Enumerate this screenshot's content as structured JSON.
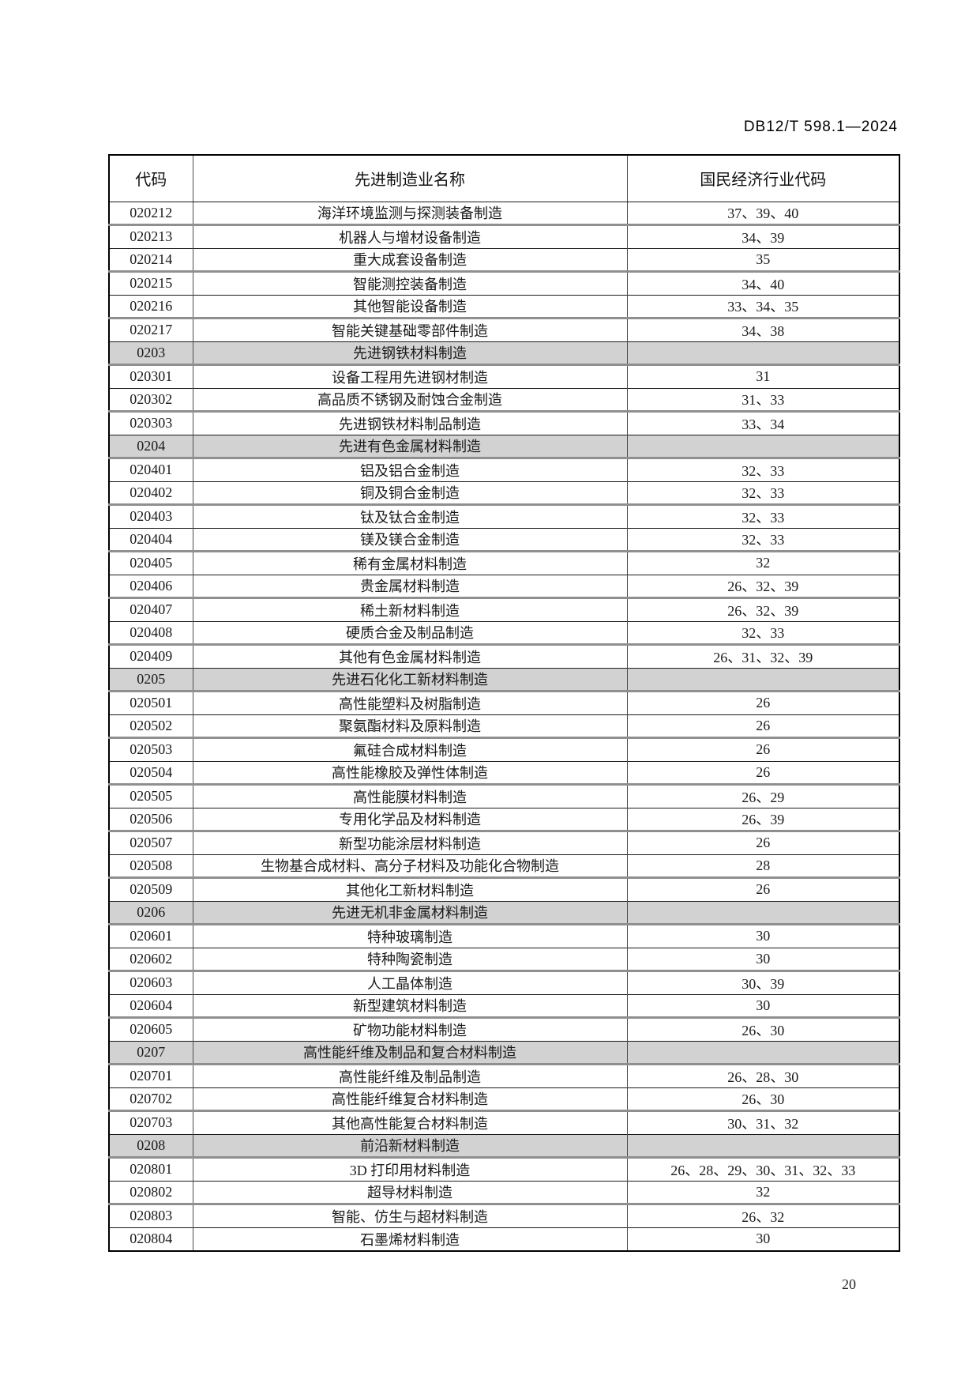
{
  "page": {
    "doc_number": "DB12/T 598.1—2024",
    "page_number": "20"
  },
  "table": {
    "headers": [
      "代码",
      "先进制造业名称",
      "国民经济行业代码"
    ],
    "rows": [
      {
        "code": "020212",
        "name": "海洋环境监测与探测装备制造",
        "codes": "37、39、40",
        "section": false
      },
      {
        "code": "020213",
        "name": "机器人与增材设备制造",
        "codes": "34、39",
        "section": false
      },
      {
        "code": "020214",
        "name": "重大成套设备制造",
        "codes": "35",
        "section": false
      },
      {
        "code": "020215",
        "name": "智能测控装备制造",
        "codes": "34、40",
        "section": false
      },
      {
        "code": "020216",
        "name": "其他智能设备制造",
        "codes": "33、34、35",
        "section": false
      },
      {
        "code": "020217",
        "name": "智能关键基础零部件制造",
        "codes": "34、38",
        "section": false
      },
      {
        "code": "0203",
        "name": "先进钢铁材料制造",
        "codes": "",
        "section": true
      },
      {
        "code": "020301",
        "name": "设备工程用先进钢材制造",
        "codes": "31",
        "section": false
      },
      {
        "code": "020302",
        "name": "高品质不锈钢及耐蚀合金制造",
        "codes": "31、33",
        "section": false
      },
      {
        "code": "020303",
        "name": "先进钢铁材料制品制造",
        "codes": "33、34",
        "section": false
      },
      {
        "code": "0204",
        "name": "先进有色金属材料制造",
        "codes": "",
        "section": true
      },
      {
        "code": "020401",
        "name": "铝及铝合金制造",
        "codes": "32、33",
        "section": false
      },
      {
        "code": "020402",
        "name": "铜及铜合金制造",
        "codes": "32、33",
        "section": false
      },
      {
        "code": "020403",
        "name": "钛及钛合金制造",
        "codes": "32、33",
        "section": false
      },
      {
        "code": "020404",
        "name": "镁及镁合金制造",
        "codes": "32、33",
        "section": false
      },
      {
        "code": "020405",
        "name": "稀有金属材料制造",
        "codes": "32",
        "section": false
      },
      {
        "code": "020406",
        "name": "贵金属材料制造",
        "codes": "26、32、39",
        "section": false
      },
      {
        "code": "020407",
        "name": "稀土新材料制造",
        "codes": "26、32、39",
        "section": false
      },
      {
        "code": "020408",
        "name": "硬质合金及制品制造",
        "codes": "32、33",
        "section": false
      },
      {
        "code": "020409",
        "name": "其他有色金属材料制造",
        "codes": "26、31、32、39",
        "section": false
      },
      {
        "code": "0205",
        "name": "先进石化化工新材料制造",
        "codes": "",
        "section": true
      },
      {
        "code": "020501",
        "name": "高性能塑料及树脂制造",
        "codes": "26",
        "section": false
      },
      {
        "code": "020502",
        "name": "聚氨酯材料及原料制造",
        "codes": "26",
        "section": false
      },
      {
        "code": "020503",
        "name": "氟硅合成材料制造",
        "codes": "26",
        "section": false
      },
      {
        "code": "020504",
        "name": "高性能橡胶及弹性体制造",
        "codes": "26",
        "section": false
      },
      {
        "code": "020505",
        "name": "高性能膜材料制造",
        "codes": "26、29",
        "section": false
      },
      {
        "code": "020506",
        "name": "专用化学品及材料制造",
        "codes": "26、39",
        "section": false
      },
      {
        "code": "020507",
        "name": "新型功能涂层材料制造",
        "codes": "26",
        "section": false
      },
      {
        "code": "020508",
        "name": "生物基合成材料、高分子材料及功能化合物制造",
        "codes": "28",
        "section": false
      },
      {
        "code": "020509",
        "name": "其他化工新材料制造",
        "codes": "26",
        "section": false
      },
      {
        "code": "0206",
        "name": "先进无机非金属材料制造",
        "codes": "",
        "section": true
      },
      {
        "code": "020601",
        "name": "特种玻璃制造",
        "codes": "30",
        "section": false
      },
      {
        "code": "020602",
        "name": "特种陶瓷制造",
        "codes": "30",
        "section": false
      },
      {
        "code": "020603",
        "name": "人工晶体制造",
        "codes": "30、39",
        "section": false
      },
      {
        "code": "020604",
        "name": "新型建筑材料制造",
        "codes": "30",
        "section": false
      },
      {
        "code": "020605",
        "name": "矿物功能材料制造",
        "codes": "26、30",
        "section": false
      },
      {
        "code": "0207",
        "name": "高性能纤维及制品和复合材料制造",
        "codes": "",
        "section": true
      },
      {
        "code": "020701",
        "name": "高性能纤维及制品制造",
        "codes": "26、28、30",
        "section": false
      },
      {
        "code": "020702",
        "name": "高性能纤维复合材料制造",
        "codes": "26、30",
        "section": false
      },
      {
        "code": "020703",
        "name": "其他高性能复合材料制造",
        "codes": "30、31、32",
        "section": false
      },
      {
        "code": "0208",
        "name": "前沿新材料制造",
        "codes": "",
        "section": true
      },
      {
        "code": "020801",
        "name": "3D 打印用材料制造",
        "codes": "26、28、29、30、31、32、33",
        "section": false
      },
      {
        "code": "020802",
        "name": "超导材料制造",
        "codes": "32",
        "section": false
      },
      {
        "code": "020803",
        "name": "智能、仿生与超材料制造",
        "codes": "26、32",
        "section": false
      },
      {
        "code": "020804",
        "name": "石墨烯材料制造",
        "codes": "30",
        "section": false
      }
    ]
  }
}
